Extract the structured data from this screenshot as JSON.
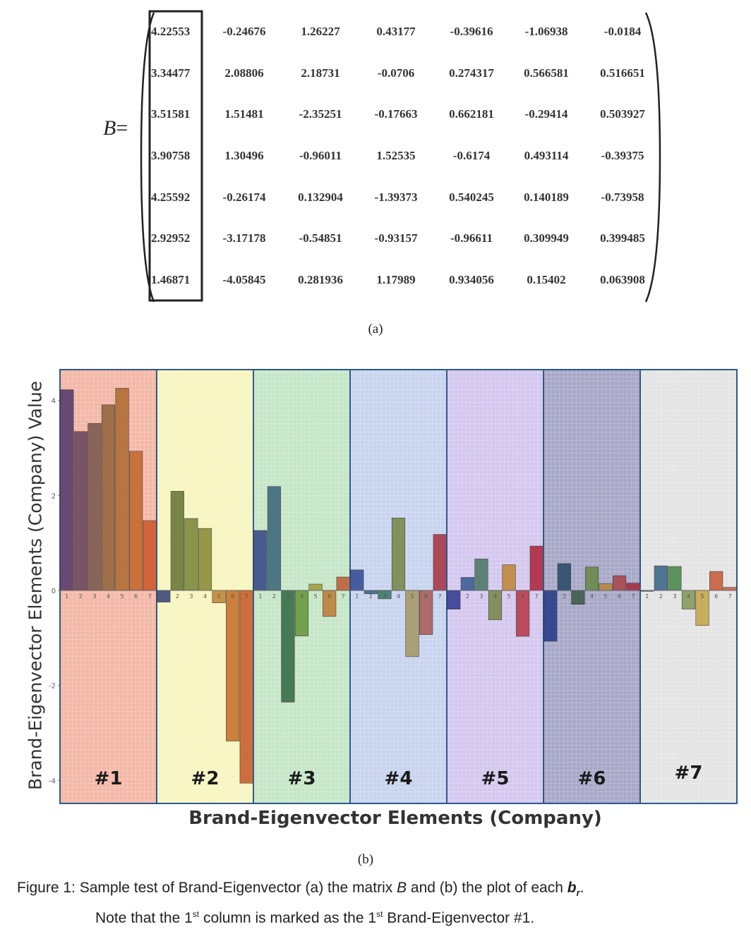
{
  "matrix": {
    "label": "B",
    "equals": "=",
    "rows": [
      [
        "4.22553",
        "-0.24676",
        "1.26227",
        "0.43177",
        "-0.39616",
        "-1.06938",
        "-0.0184"
      ],
      [
        "3.34477",
        "2.08806",
        "2.18731",
        "-0.0706",
        "0.274317",
        "0.566581",
        "0.516651"
      ],
      [
        "3.51581",
        "1.51481",
        "-2.35251",
        "-0.17663",
        "0.662181",
        "-0.29414",
        "0.503927"
      ],
      [
        "3.90758",
        "1.30496",
        "-0.96011",
        "1.52535",
        "-0.6174",
        "0.493114",
        "-0.39375"
      ],
      [
        "4.25592",
        "-0.26174",
        "0.132904",
        "-1.39373",
        "0.540245",
        "0.140189",
        "-0.73958"
      ],
      [
        "2.92952",
        "-3.17178",
        "-0.54851",
        "-0.93157",
        "-0.96611",
        "0.309949",
        "0.399485"
      ],
      [
        "1.46871",
        "-4.05845",
        "0.281936",
        "1.17989",
        "0.934056",
        "0.15402",
        "0.063908"
      ]
    ]
  },
  "caption_a": "(a)",
  "caption_b": "(b)",
  "chart_data": {
    "type": "bar",
    "ylabel": "Brand-Eigenvector Elements (Company) Value",
    "xlabel": "Brand-Eigenvector Elements (Company)",
    "ylim": [
      -4.1,
      4.5
    ],
    "yticks": [
      "4",
      "2",
      "0",
      "-2",
      "-4"
    ],
    "element_labels": [
      "1",
      "2",
      "3",
      "4",
      "5",
      "6",
      "7"
    ],
    "grid": true,
    "groups": [
      {
        "name": "#1",
        "panel_color": "#f4b8a8",
        "bar_colors": [
          "#5a3e6e",
          "#6b4a5e",
          "#7d5a50",
          "#94663e",
          "#b06e34",
          "#c56a30",
          "#d05a2e"
        ],
        "values": [
          4.22553,
          3.34477,
          3.51581,
          3.90758,
          4.25592,
          2.92952,
          1.46871
        ]
      },
      {
        "name": "#2",
        "panel_color": "#f7f5c0",
        "bar_colors": [
          "#3e4a78",
          "#6a7a3a",
          "#7d8a3e",
          "#8a8e3a",
          "#c0883a",
          "#c8742e",
          "#c8602e"
        ],
        "values": [
          -0.24676,
          2.08806,
          1.51481,
          1.30496,
          -0.26174,
          -3.17178,
          -4.05845
        ]
      },
      {
        "name": "#3",
        "panel_color": "#c6e6c8",
        "bar_colors": [
          "#3a4e88",
          "#3e6a7e",
          "#3a6e48",
          "#6a9a3e",
          "#a0a03e",
          "#c0803a",
          "#c0603a"
        ],
        "values": [
          1.26227,
          2.18731,
          -2.35251,
          -0.96011,
          0.132904,
          -0.54851,
          0.281936
        ]
      },
      {
        "name": "#4",
        "panel_color": "#c8d4ee",
        "bar_colors": [
          "#3a4e98",
          "#3e6a8a",
          "#3e7a68",
          "#7a8a4e",
          "#a89a6a",
          "#a8605e",
          "#a83a48"
        ],
        "values": [
          0.43177,
          -0.0706,
          -0.17663,
          1.52535,
          -1.39373,
          -0.93157,
          1.17989
        ]
      },
      {
        "name": "#5",
        "panel_color": "#d4c8ee",
        "bar_colors": [
          "#3a3e98",
          "#3e5e98",
          "#4e7a68",
          "#7a8a4e",
          "#c0883a",
          "#b83e4e",
          "#b02a40"
        ],
        "values": [
          -0.39616,
          0.274317,
          0.662181,
          -0.6174,
          0.540245,
          -0.96611,
          0.934056
        ]
      },
      {
        "name": "#6",
        "panel_color": "#a8a8c8",
        "bar_colors": [
          "#2a3e88",
          "#2e4e6a",
          "#3e5e4e",
          "#6a8a4e",
          "#b8883e",
          "#a8484e",
          "#a82e3e"
        ],
        "values": [
          -1.06938,
          0.566581,
          -0.29414,
          0.493114,
          0.140189,
          0.309949,
          0.15402
        ]
      },
      {
        "name": "#7",
        "panel_color": "#e4e4e4",
        "bar_colors": [
          "#3a3e88",
          "#3e6a8a",
          "#4e8a4e",
          "#8a9a5e",
          "#c8a84e",
          "#c8603e",
          "#c8624a"
        ],
        "values": [
          -0.0184,
          0.516651,
          0.503927,
          -0.39375,
          -0.73958,
          0.399485,
          0.063908
        ]
      }
    ]
  },
  "figure_caption": {
    "line1_prefix": "Figure 1: Sample test of Brand-Eigenvector (a) the matrix ",
    "line1_B": "B",
    "line1_mid": " and (b) the plot of each ",
    "line1_b": "b",
    "line1_r": "r",
    "line1_end": ".",
    "line2_a": "Note that the 1",
    "sup": "st",
    "line2_b": " column is marked as the 1",
    "line2_c": " Brand-Eigenvector #1."
  }
}
